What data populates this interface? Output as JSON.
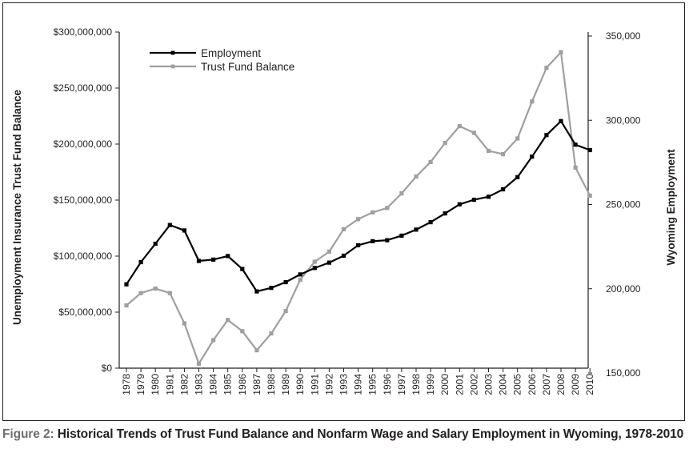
{
  "chart_data": {
    "type": "line",
    "x": [
      "1978",
      "1979",
      "1980",
      "1981",
      "1982",
      "1983",
      "1984",
      "1985",
      "1986",
      "1987",
      "1988",
      "1989",
      "1990",
      "1991",
      "1992",
      "1993",
      "1994",
      "1995",
      "1996",
      "1997",
      "1998",
      "1999",
      "2000",
      "2001",
      "2002",
      "2003",
      "2004",
      "2005",
      "2006",
      "2007",
      "2008",
      "2009",
      "2010"
    ],
    "series": [
      {
        "name": "Employment",
        "axis": "right",
        "color": "#000000",
        "values": [
          202600,
          215800,
          226700,
          237800,
          234600,
          216500,
          217300,
          219400,
          211700,
          198400,
          200500,
          203900,
          208500,
          212300,
          215500,
          219600,
          225800,
          228200,
          228800,
          231500,
          235100,
          239500,
          244700,
          250100,
          252800,
          254600,
          259000,
          266200,
          278400,
          291200,
          299500,
          285500,
          282300
        ]
      },
      {
        "name": "Trust Fund Balance",
        "axis": "left",
        "color": "#9d9fa2",
        "values": [
          56000000,
          67000000,
          71000000,
          67000000,
          40000000,
          4000000,
          25000000,
          43000000,
          33000000,
          16000000,
          31000000,
          51000000,
          79000000,
          95000000,
          104000000,
          124000000,
          133000000,
          139000000,
          143000000,
          156000000,
          171000000,
          184000000,
          201000000,
          216000000,
          210000000,
          194000000,
          191000000,
          205000000,
          238000000,
          268000000,
          282000000,
          179000000,
          154000000
        ]
      }
    ],
    "y_left": {
      "label": "Unemployment Insurance Trust Fund Balance",
      "range": [
        0,
        300000000
      ],
      "ticks": [
        0,
        50000000,
        100000000,
        150000000,
        200000000,
        250000000,
        300000000
      ],
      "tick_labels": [
        "$0",
        "$50,000,000",
        "$100,000,000",
        "$150,000,000",
        "$200,000,000",
        "$250,000,000",
        "$300,000,000"
      ]
    },
    "y_right": {
      "label": "Wyoming Employment",
      "range": [
        150000,
        350000
      ],
      "ticks": [
        150000,
        200000,
        250000,
        300000,
        350000
      ],
      "tick_labels": [
        "150,000",
        "200,000",
        "250,000",
        "300,000",
        "350,000"
      ]
    },
    "grid": false,
    "legend_position": "top-left"
  },
  "caption": {
    "label": "Figure 2:",
    "text": " Historical Trends of Trust Fund Balance and Nonfarm Wage and Salary Employment in Wyoming, 1978-2010"
  }
}
